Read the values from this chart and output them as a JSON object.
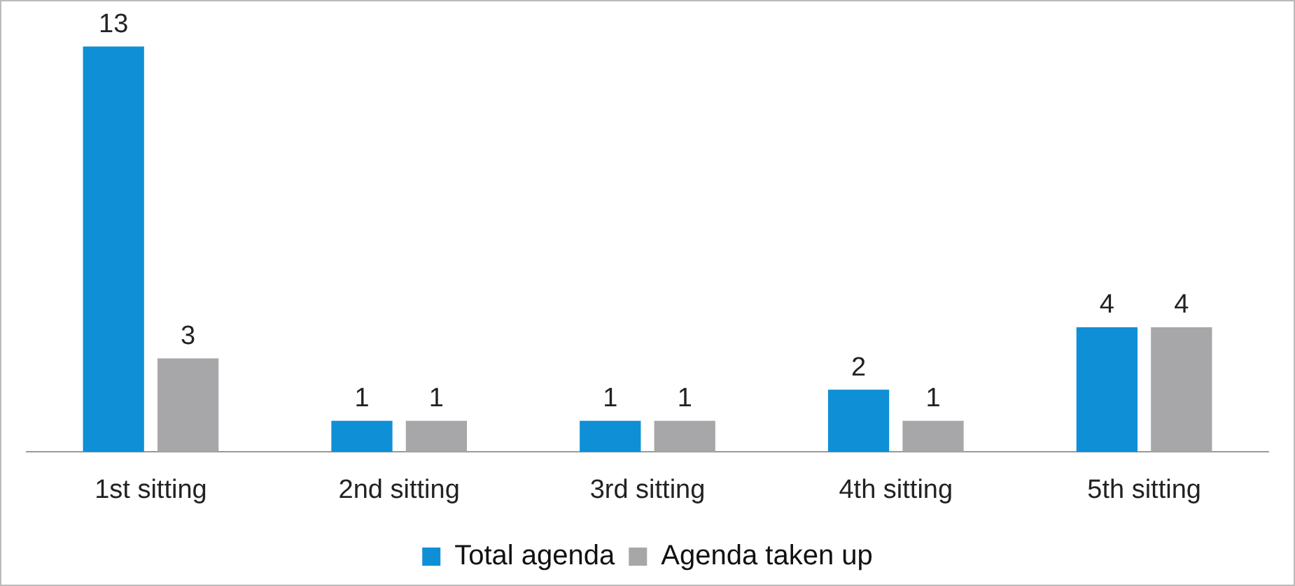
{
  "chart_data": {
    "type": "bar",
    "categories": [
      "1st sitting",
      "2nd sitting",
      "3rd sitting",
      "4th sitting",
      "5th sitting"
    ],
    "series": [
      {
        "name": "Total agenda",
        "color": "#0f8fd6",
        "values": [
          13,
          1,
          1,
          2,
          4
        ]
      },
      {
        "name": "Agenda taken up",
        "color": "#a7a7a9",
        "values": [
          3,
          1,
          1,
          1,
          4
        ]
      }
    ],
    "data_labels": true,
    "legend": "bottom",
    "grid": false,
    "tick_labels": "x"
  }
}
